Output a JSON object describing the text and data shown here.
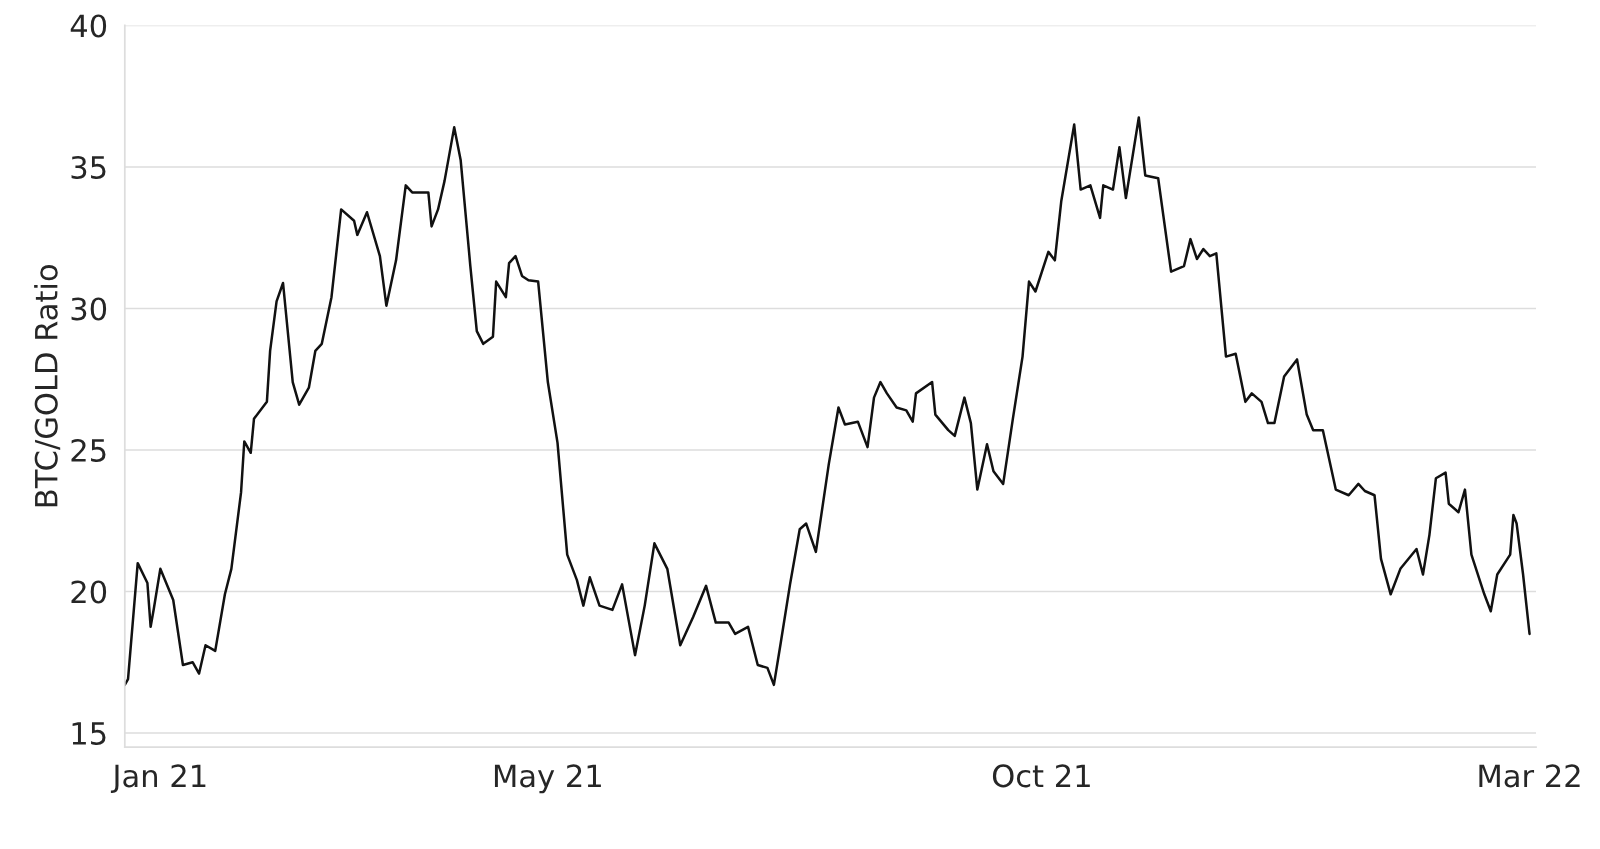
{
  "chart_data": {
    "type": "line",
    "ylabel": "BTC/GOLD Ratio",
    "xlim": [
      "2020-12-21",
      "2022-03-03"
    ],
    "ylim": [
      14.5,
      40
    ],
    "yticks": [
      15,
      20,
      25,
      30,
      35,
      40
    ],
    "xticks": [
      {
        "value": "2021-01-01",
        "label": "Jan 21"
      },
      {
        "value": "2021-05-01",
        "label": "May 21"
      },
      {
        "value": "2021-10-01",
        "label": "Oct 21"
      },
      {
        "value": "2022-03-01",
        "label": "Mar 22"
      }
    ],
    "grid": "y",
    "marker": "none",
    "line_style": "solid",
    "x": [
      "2020-12-21",
      "2020-12-22",
      "2020-12-25",
      "2020-12-28",
      "2020-12-29",
      "2020-12-30",
      "2021-01-01",
      "2021-01-05",
      "2021-01-08",
      "2021-01-11",
      "2021-01-13",
      "2021-01-15",
      "2021-01-18",
      "2021-01-21",
      "2021-01-23",
      "2021-01-26",
      "2021-01-27",
      "2021-01-29",
      "2021-01-30",
      "2021-02-03",
      "2021-02-04",
      "2021-02-06",
      "2021-02-08",
      "2021-02-11",
      "2021-02-13",
      "2021-02-16",
      "2021-02-18",
      "2021-02-20",
      "2021-02-23",
      "2021-02-26",
      "2021-03-02",
      "2021-03-03",
      "2021-03-06",
      "2021-03-10",
      "2021-03-12",
      "2021-03-15",
      "2021-03-18",
      "2021-03-20",
      "2021-03-25",
      "2021-03-26",
      "2021-03-28",
      "2021-03-30",
      "2021-04-02",
      "2021-04-04",
      "2021-04-07",
      "2021-04-09",
      "2021-04-11",
      "2021-04-14",
      "2021-04-15",
      "2021-04-18",
      "2021-04-19",
      "2021-04-21",
      "2021-04-23",
      "2021-04-25",
      "2021-04-28",
      "2021-05-01",
      "2021-05-04",
      "2021-05-07",
      "2021-05-10",
      "2021-05-12",
      "2021-05-14",
      "2021-05-17",
      "2021-05-21",
      "2021-05-24",
      "2021-05-28",
      "2021-05-31",
      "2021-06-03",
      "2021-06-07",
      "2021-06-11",
      "2021-06-15",
      "2021-06-19",
      "2021-06-22",
      "2021-06-26",
      "2021-06-28",
      "2021-07-02",
      "2021-07-05",
      "2021-07-08",
      "2021-07-10",
      "2021-07-12",
      "2021-07-15",
      "2021-07-18",
      "2021-07-20",
      "2021-07-23",
      "2021-07-27",
      "2021-07-30",
      "2021-08-01",
      "2021-08-05",
      "2021-08-08",
      "2021-08-10",
      "2021-08-12",
      "2021-08-14",
      "2021-08-17",
      "2021-08-20",
      "2021-08-22",
      "2021-08-23",
      "2021-08-28",
      "2021-08-29",
      "2021-09-02",
      "2021-09-04",
      "2021-09-07",
      "2021-09-09",
      "2021-09-11",
      "2021-09-14",
      "2021-09-16",
      "2021-09-19",
      "2021-09-22",
      "2021-09-25",
      "2021-09-27",
      "2021-09-29",
      "2021-10-03",
      "2021-10-05",
      "2021-10-07",
      "2021-10-11",
      "2021-10-13",
      "2021-10-16",
      "2021-10-19",
      "2021-10-20",
      "2021-10-23",
      "2021-10-25",
      "2021-10-27",
      "2021-10-31",
      "2021-11-02",
      "2021-11-06",
      "2021-11-10",
      "2021-11-14",
      "2021-11-16",
      "2021-11-18",
      "2021-11-20",
      "2021-11-22",
      "2021-11-24",
      "2021-11-27",
      "2021-11-30",
      "2021-12-03",
      "2021-12-05",
      "2021-12-08",
      "2021-12-10",
      "2021-12-12",
      "2021-12-15",
      "2021-12-19",
      "2021-12-22",
      "2021-12-24",
      "2021-12-27",
      "2021-12-31",
      "2022-01-04",
      "2022-01-07",
      "2022-01-09",
      "2022-01-12",
      "2022-01-14",
      "2022-01-17",
      "2022-01-20",
      "2022-01-25",
      "2022-01-27",
      "2022-01-29",
      "2022-01-31",
      "2022-02-03",
      "2022-02-04",
      "2022-02-07",
      "2022-02-09",
      "2022-02-11",
      "2022-02-15",
      "2022-02-17",
      "2022-02-19",
      "2022-02-23",
      "2022-02-24",
      "2022-02-25",
      "2022-02-27",
      "2022-03-01"
    ],
    "series": [
      {
        "color": "#111111",
        "values": [
          16.7,
          16.9,
          21.0,
          20.3,
          18.75,
          19.4,
          20.8,
          19.7,
          17.4,
          17.5,
          17.1,
          18.1,
          17.9,
          19.9,
          20.8,
          23.5,
          25.3,
          24.9,
          26.1,
          26.7,
          28.5,
          30.25,
          30.9,
          27.4,
          26.6,
          27.2,
          28.5,
          28.75,
          30.4,
          33.5,
          33.1,
          32.6,
          33.4,
          31.85,
          30.1,
          31.7,
          34.35,
          34.1,
          34.1,
          32.9,
          33.5,
          34.5,
          36.4,
          35.25,
          31.5,
          29.2,
          28.75,
          29.0,
          30.95,
          30.4,
          31.6,
          31.85,
          31.15,
          31.0,
          30.95,
          27.4,
          25.25,
          21.3,
          20.4,
          19.5,
          20.5,
          19.5,
          19.35,
          20.25,
          17.75,
          19.5,
          21.7,
          20.8,
          18.1,
          19.1,
          20.2,
          18.9,
          18.9,
          18.5,
          18.75,
          17.4,
          17.3,
          16.7,
          18.1,
          20.25,
          22.2,
          22.4,
          21.4,
          24.5,
          26.5,
          25.9,
          26.0,
          25.1,
          26.85,
          27.4,
          27.0,
          26.5,
          26.4,
          26.0,
          27.0,
          27.4,
          26.25,
          25.7,
          25.5,
          26.85,
          25.95,
          23.6,
          25.2,
          24.25,
          23.8,
          26.1,
          28.3,
          30.95,
          30.6,
          32.0,
          31.7,
          33.8,
          36.5,
          34.2,
          34.35,
          33.2,
          34.35,
          34.2,
          35.7,
          33.9,
          36.75,
          34.7,
          34.6,
          31.3,
          31.5,
          32.45,
          31.75,
          32.1,
          31.85,
          31.95,
          28.3,
          28.4,
          26.7,
          27.0,
          26.7,
          25.95,
          25.95,
          27.6,
          28.2,
          26.25,
          25.7,
          25.7,
          23.6,
          23.4,
          23.8,
          23.55,
          23.4,
          21.15,
          19.9,
          20.8,
          21.5,
          20.6,
          22.0,
          24.0,
          24.2,
          23.1,
          22.8,
          23.6,
          21.3,
          19.9,
          19.3,
          20.6,
          21.3,
          22.7,
          22.4,
          20.6,
          18.5
        ]
      }
    ]
  }
}
